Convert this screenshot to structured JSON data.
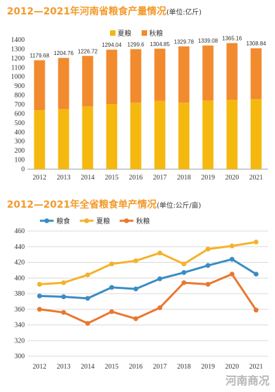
{
  "chart1": {
    "title": "2012—2021年河南省粮食产量情况",
    "unit": "(单位:亿斤)",
    "colors": {
      "summer": "#f5b80f",
      "autumn": "#f28a2e"
    }
  },
  "chart2": {
    "title": "2012—2021年全省粮食单产情况",
    "unit": "(单位:公斤/亩)",
    "colors": {
      "grain": "#3a8cc4",
      "summer": "#f5b22a",
      "autumn": "#e8782f"
    }
  },
  "watermark": "河南商况",
  "chart_data": [
    {
      "type": "bar",
      "stacked": true,
      "title": "2012—2021年河南省粮食产量情况",
      "unit": "亿斤",
      "categories": [
        "2012",
        "2013",
        "2014",
        "2015",
        "2016",
        "2017",
        "2018",
        "2019",
        "2020",
        "2021"
      ],
      "series": [
        {
          "name": "夏粮",
          "values": [
            640,
            650,
            680,
            705,
            720,
            740,
            720,
            745,
            750,
            760
          ]
        },
        {
          "name": "秋粮",
          "values": [
            539.68,
            554.76,
            546.72,
            589.04,
            579.6,
            564.85,
            609.78,
            594.08,
            615.16,
            548.84
          ]
        }
      ],
      "totals": [
        1179.68,
        1204.76,
        1226.72,
        1294.04,
        1299.6,
        1304.85,
        1329.78,
        1339.08,
        1365.16,
        1308.84
      ],
      "total_labels": [
        "1179.68",
        "1204.76",
        "1226.72",
        "1294.04",
        "1299.6",
        "1304.85",
        "1329.78",
        "1339.08",
        "1365.16",
        "1308.84"
      ],
      "y_ticks": [
        "0",
        "100",
        "200",
        "300",
        "400",
        "500",
        "600",
        "700",
        "800",
        "900",
        "1000",
        "1100",
        "1200",
        "1300",
        "1400"
      ],
      "ylim": [
        0,
        1400
      ],
      "legend": "top-center",
      "grid": false
    },
    {
      "type": "line",
      "title": "2012—2021年全省粮食单产情况",
      "unit": "公斤/亩",
      "categories": [
        "2012",
        "2013",
        "2014",
        "2015",
        "2016",
        "2017",
        "2018",
        "2019",
        "2020",
        "2021"
      ],
      "series": [
        {
          "name": "粮食",
          "values": [
            377,
            376,
            374,
            388,
            386,
            399,
            407,
            416,
            424,
            405
          ]
        },
        {
          "name": "夏粮",
          "values": [
            392,
            394,
            404,
            418,
            422,
            432,
            418,
            437,
            441,
            446
          ]
        },
        {
          "name": "秋粮",
          "values": [
            360,
            356,
            342,
            357,
            348,
            362,
            394,
            392,
            405,
            359
          ]
        }
      ],
      "y_ticks": [
        "300",
        "320",
        "340",
        "360",
        "380",
        "400",
        "420",
        "440",
        "460"
      ],
      "ylim": [
        300,
        460
      ],
      "legend": "top-left",
      "grid": true
    }
  ]
}
